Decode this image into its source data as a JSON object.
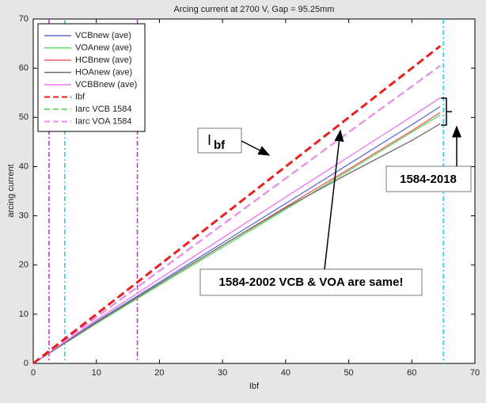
{
  "chart_data": {
    "type": "line",
    "title": "Arcing current at 2700 V, Gap = 95.25mm",
    "xlabel": "Ibf",
    "ylabel": "arcing current",
    "x": [
      0,
      10,
      20,
      30,
      40,
      50,
      60,
      64.5
    ],
    "series": [
      {
        "name": "VCBnew (ave)",
        "color": "#5b6fd6",
        "dash": false,
        "values": [
          0,
          8.5,
          16.5,
          24.5,
          32.5,
          40.5,
          48.5,
          52.2
        ]
      },
      {
        "name": "VOAnew (ave)",
        "color": "#5fd65f",
        "dash": false,
        "values": [
          0,
          8.1,
          15.9,
          23.6,
          31.3,
          39.2,
          47,
          50.5
        ]
      },
      {
        "name": "HCBnew (ave)",
        "color": "#ec6060",
        "dash": false,
        "values": [
          0,
          8.3,
          16.2,
          24,
          31.8,
          39.5,
          47.3,
          51
        ]
      },
      {
        "name": "HOAnew (ave)",
        "color": "#6e6e6e",
        "dash": false,
        "values": [
          0,
          8.3,
          16.2,
          24,
          31.6,
          38.6,
          45.3,
          48.7
        ]
      },
      {
        "name": "VCBBnew (ave)",
        "color": "#f070f0",
        "dash": false,
        "values": [
          0,
          8.8,
          17.2,
          25.5,
          33.8,
          42,
          50.2,
          54
        ]
      },
      {
        "name": "Ibf",
        "color": "#e8201f",
        "dash": true,
        "values": [
          0,
          10,
          20,
          30,
          40,
          50,
          60,
          64.5
        ]
      },
      {
        "name": "Iarc VCB 1584",
        "color": "#70e070",
        "dash": true,
        "values": [
          0,
          9.4,
          18.8,
          28.2,
          37.6,
          47,
          56.3,
          60.5
        ]
      },
      {
        "name": "Iarc VOA 1584",
        "color": "#f08cf0",
        "dash": true,
        "values": [
          0,
          9.4,
          18.8,
          28.2,
          37.6,
          47,
          56.3,
          60.5
        ]
      }
    ],
    "vlines": [
      {
        "x": 2.5,
        "color": "#d020d0"
      },
      {
        "x": 16.5,
        "color": "#d020d0"
      },
      {
        "x": 5,
        "color": "#20d0e0"
      },
      {
        "x": 65,
        "color": "#20d0e0"
      }
    ],
    "xlim": [
      0,
      70
    ],
    "ylim": [
      0,
      70
    ],
    "xticks": [
      0,
      10,
      20,
      30,
      40,
      50,
      60,
      70
    ],
    "yticks": [
      0,
      10,
      20,
      30,
      40,
      50,
      60,
      70
    ],
    "annotations": [
      {
        "text": "I",
        "sub": "bf"
      },
      {
        "text": "1584-2018"
      },
      {
        "text": "1584-2002 VCB & VOA are same!"
      }
    ]
  }
}
